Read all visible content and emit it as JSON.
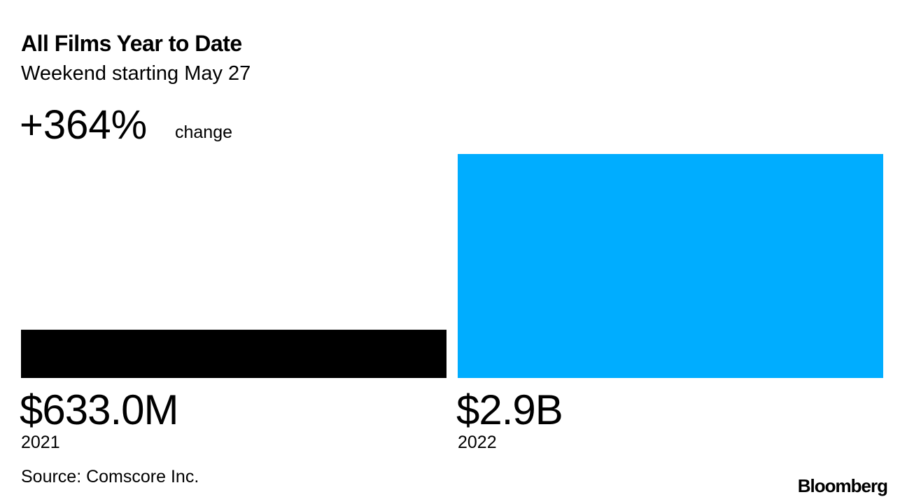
{
  "chart_data": {
    "type": "bar",
    "title": "All Films Year to Date",
    "subtitle": "Weekend starting May 27",
    "change_label": "+364%",
    "change_text": "change",
    "categories": [
      "2021",
      "2022"
    ],
    "values": [
      633000000,
      2937000000
    ],
    "value_labels": [
      "$633.0M",
      "$2.9B"
    ],
    "colors": [
      "#000000",
      "#00adff"
    ],
    "source": "Source: Comscore Inc.",
    "brand": "Bloomberg"
  }
}
